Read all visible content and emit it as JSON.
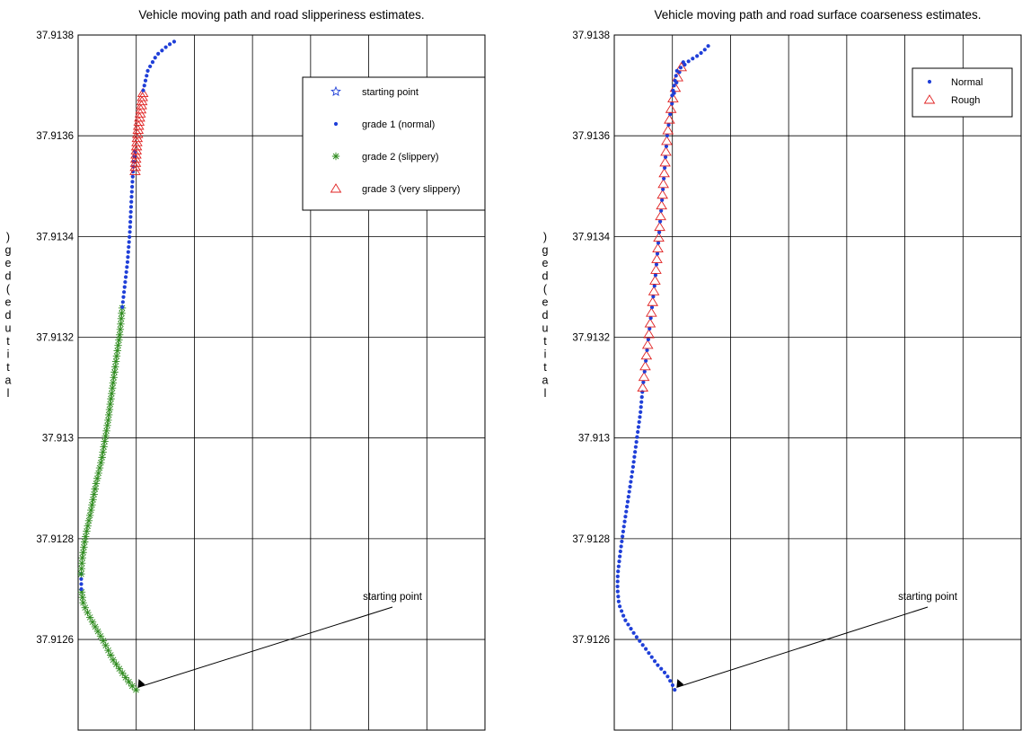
{
  "chart_data": [
    {
      "type": "scatter",
      "title": "Vehicle moving path and road slipperiness estimates.",
      "ylabel": "latitude(deg)",
      "ylabel_rendered": ")ged(edutital",
      "yticks": [
        "37.9138",
        "37.9136",
        "37.9134",
        "37.9132",
        "37.913",
        "37.9128",
        "37.9126"
      ],
      "ylim": [
        37.91242,
        37.9138
      ],
      "grid": true,
      "legend_position": "top-right",
      "legend": [
        {
          "label": "starting point",
          "marker": "star",
          "color": "#1f3fd8"
        },
        {
          "label": "grade 1 (normal)",
          "marker": "dot",
          "color": "#1f3fd8"
        },
        {
          "label": "grade 2 (slippery)",
          "marker": "asterisk",
          "color": "#2e8b1e"
        },
        {
          "label": "grade 3 (very slippery)",
          "marker": "triangle",
          "color": "#e02020"
        }
      ],
      "annotation": "starting point",
      "path_segments": [
        {
          "grade": 2,
          "points": [
            [
              0.996,
              37.9125
            ],
            [
              0.91,
              37.91251
            ],
            [
              0.78,
              37.91253
            ],
            [
              0.6,
              37.91256
            ],
            [
              0.42,
              37.9126
            ],
            [
              0.22,
              37.91264
            ],
            [
              0.09,
              37.91267
            ],
            [
              0.055,
              37.9127
            ]
          ]
        },
        {
          "grade": 1,
          "points": [
            [
              0.055,
              37.9127
            ],
            [
              0.052,
              37.91273
            ]
          ]
        },
        {
          "grade": 2,
          "points": [
            [
              0.052,
              37.91273
            ],
            [
              0.07,
              37.91276
            ],
            [
              0.12,
              37.9128
            ],
            [
              0.21,
              37.91285
            ],
            [
              0.31,
              37.91291
            ],
            [
              0.41,
              37.91296
            ],
            [
              0.51,
              37.91303
            ],
            [
              0.59,
              37.9131
            ],
            [
              0.66,
              37.91316
            ],
            [
              0.72,
              37.91321
            ],
            [
              0.76,
              37.91326
            ]
          ]
        },
        {
          "grade": 1,
          "points": [
            [
              0.76,
              37.91326
            ],
            [
              0.8,
              37.9133
            ],
            [
              0.85,
              37.91335
            ],
            [
              0.89,
              37.91341
            ],
            [
              0.92,
              37.91348
            ],
            [
              0.95,
              37.91354
            ],
            [
              0.98,
              37.91357
            ]
          ]
        },
        {
          "grade": 3,
          "points": [
            [
              0.98,
              37.91353
            ],
            [
              1.0,
              37.91357
            ],
            [
              1.02,
              37.9136
            ],
            [
              1.05,
              37.91363
            ],
            [
              1.09,
              37.91366
            ],
            [
              1.12,
              37.91369
            ]
          ]
        },
        {
          "grade": 1,
          "points": [
            [
              1.12,
              37.91369
            ],
            [
              1.2,
              37.91373
            ],
            [
              1.35,
              37.91376
            ],
            [
              1.55,
              37.91378
            ],
            [
              1.7,
              37.91379
            ]
          ]
        }
      ]
    },
    {
      "type": "scatter",
      "title": "Vehicle moving path and road surface coarseness estimates.",
      "ylabel": "latitude(deg)",
      "ylabel_rendered": ")ged(edutital",
      "yticks": [
        "37.9138",
        "37.9136",
        "37.9134",
        "37.9132",
        "37.913",
        "37.9128",
        "37.9126"
      ],
      "ylim": [
        37.91242,
        37.9138
      ],
      "grid": true,
      "legend_position": "top-right",
      "legend": [
        {
          "label": "Normal",
          "marker": "dot",
          "color": "#1f3fd8"
        },
        {
          "label": "Rough",
          "marker": "triangle",
          "color": "#e02020"
        }
      ],
      "annotation": "starting point",
      "path_segments": [
        {
          "grade": 1,
          "points": [
            [
              1.04,
              37.9125
            ],
            [
              1.0,
              37.91251
            ],
            [
              0.9,
              37.91253
            ],
            [
              0.74,
              37.91255
            ],
            [
              0.55,
              37.91258
            ],
            [
              0.35,
              37.91261
            ],
            [
              0.18,
              37.91264
            ],
            [
              0.08,
              37.91267
            ],
            [
              0.055,
              37.9127
            ],
            [
              0.06,
              37.91273
            ],
            [
              0.1,
              37.91277
            ],
            [
              0.16,
              37.91282
            ],
            [
              0.24,
              37.91288
            ],
            [
              0.32,
              37.91294
            ],
            [
              0.39,
              37.913
            ],
            [
              0.45,
              37.91305
            ],
            [
              0.49,
              37.9131
            ]
          ]
        },
        {
          "grade": 2,
          "points": [
            [
              0.49,
              37.9131
            ],
            [
              0.56,
              37.91317
            ],
            [
              0.63,
              37.91324
            ],
            [
              0.7,
              37.91331
            ],
            [
              0.76,
              37.91339
            ],
            [
              0.82,
              37.91347
            ],
            [
              0.87,
              37.91354
            ],
            [
              0.91,
              37.9136
            ],
            [
              0.97,
              37.91365
            ],
            [
              1.02,
              37.91368
            ],
            [
              1.1,
              37.91372
            ],
            [
              1.2,
              37.91375
            ]
          ]
        },
        {
          "grade": 1,
          "points": [
            [
              0.995,
              37.91368
            ],
            [
              1.03,
              37.9137
            ],
            [
              1.08,
              37.91373
            ],
            [
              1.2,
              37.91374
            ],
            [
              1.3,
              37.91375
            ],
            [
              1.45,
              37.91376
            ],
            [
              1.55,
              37.91377
            ],
            [
              1.63,
              37.91378
            ]
          ]
        }
      ]
    }
  ]
}
